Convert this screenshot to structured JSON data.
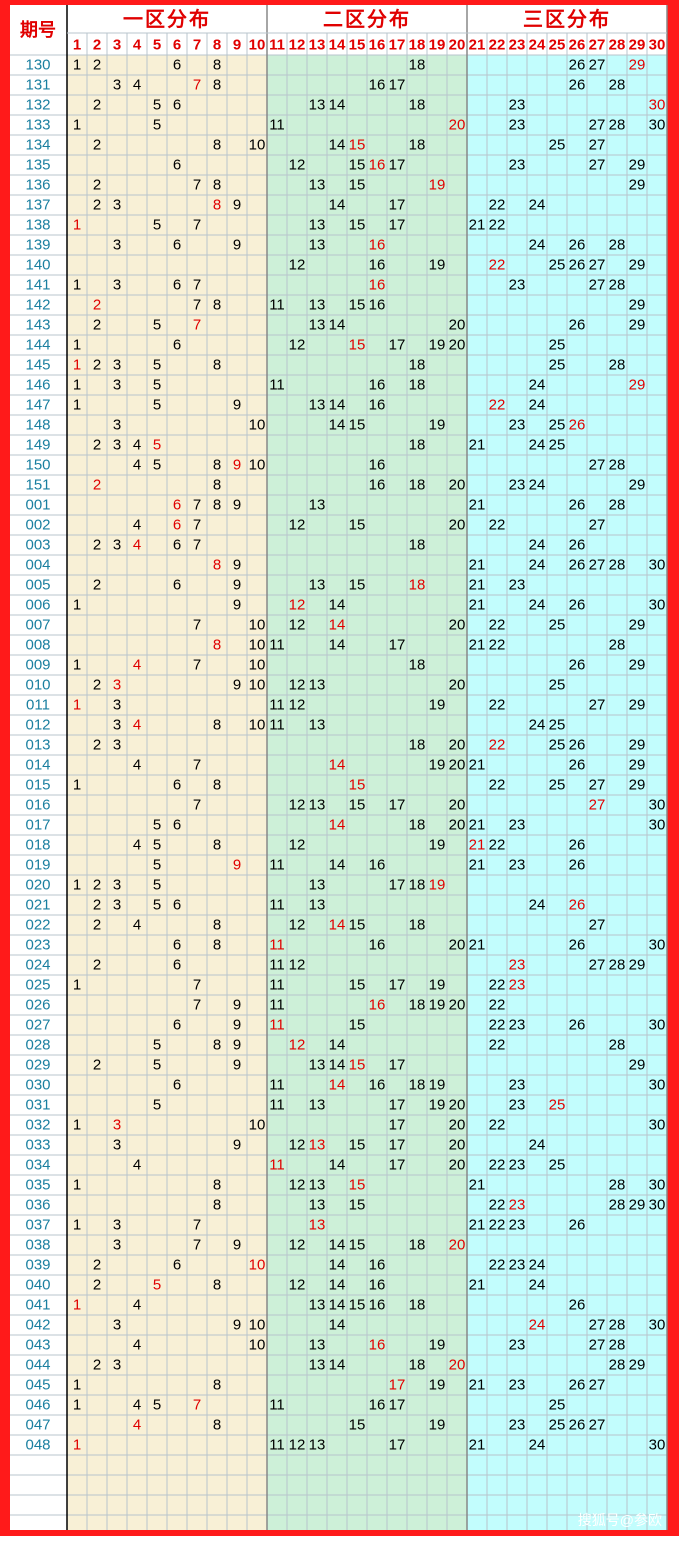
{
  "header": {
    "period_label": "期号",
    "zones": [
      "一区分布",
      "二区分布",
      "三区分布"
    ],
    "columns": [
      1,
      2,
      3,
      4,
      5,
      6,
      7,
      8,
      9,
      10,
      11,
      12,
      13,
      14,
      15,
      16,
      17,
      18,
      19,
      20,
      21,
      22,
      23,
      24,
      25,
      26,
      27,
      28,
      29,
      30
    ]
  },
  "rows": [
    {
      "period": "130",
      "period_red": true,
      "numbers": [
        1,
        2,
        6,
        8,
        18,
        26,
        27,
        29
      ],
      "red": [
        29
      ]
    },
    {
      "period": "131",
      "numbers": [
        3,
        4,
        7,
        8,
        16,
        17,
        26,
        28
      ],
      "red": [
        7
      ]
    },
    {
      "period": "132",
      "numbers": [
        2,
        5,
        6,
        13,
        14,
        18,
        23,
        30
      ],
      "red": [
        30
      ]
    },
    {
      "period": "133",
      "numbers": [
        1,
        5,
        11,
        20,
        23,
        27,
        28,
        30
      ],
      "red": [
        20
      ]
    },
    {
      "period": "134",
      "numbers": [
        2,
        8,
        10,
        14,
        15,
        18,
        25,
        27
      ],
      "red": [
        15
      ]
    },
    {
      "period": "135",
      "numbers": [
        6,
        12,
        15,
        16,
        17,
        23,
        27,
        29
      ],
      "red": [
        16
      ]
    },
    {
      "period": "136",
      "numbers": [
        2,
        7,
        8,
        13,
        15,
        19,
        29
      ],
      "red": [
        19
      ]
    },
    {
      "period": "137",
      "numbers": [
        2,
        3,
        8,
        9,
        14,
        17,
        22,
        24
      ],
      "red": [
        8
      ]
    },
    {
      "period": "138",
      "numbers": [
        1,
        5,
        7,
        13,
        15,
        17,
        21,
        22
      ],
      "red": [
        1
      ]
    },
    {
      "period": "139",
      "numbers": [
        3,
        6,
        9,
        13,
        16,
        24,
        26,
        28
      ],
      "red": [
        16
      ]
    },
    {
      "period": "140",
      "period_red": true,
      "numbers": [
        12,
        16,
        19,
        22,
        25,
        26,
        27,
        29
      ],
      "red": [
        22
      ]
    },
    {
      "period": "141",
      "numbers": [
        1,
        3,
        6,
        7,
        16,
        23,
        27,
        28
      ],
      "red": [
        16
      ]
    },
    {
      "period": "142",
      "numbers": [
        2,
        7,
        8,
        11,
        13,
        15,
        16,
        29
      ],
      "red": [
        2
      ]
    },
    {
      "period": "143",
      "numbers": [
        2,
        5,
        7,
        13,
        14,
        20,
        26,
        29
      ],
      "red": [
        7
      ]
    },
    {
      "period": "144",
      "numbers": [
        1,
        6,
        12,
        15,
        17,
        19,
        20,
        25
      ],
      "red": [
        15
      ]
    },
    {
      "period": "145",
      "numbers": [
        1,
        2,
        3,
        5,
        8,
        18,
        25,
        28
      ],
      "red": [
        1
      ]
    },
    {
      "period": "146",
      "numbers": [
        1,
        3,
        5,
        11,
        16,
        18,
        24,
        29
      ],
      "red": [
        29
      ]
    },
    {
      "period": "147",
      "numbers": [
        1,
        5,
        9,
        13,
        14,
        16,
        22,
        24
      ],
      "red": [
        22
      ]
    },
    {
      "period": "148",
      "numbers": [
        3,
        10,
        14,
        15,
        19,
        23,
        25,
        26
      ],
      "red": [
        26
      ]
    },
    {
      "period": "149",
      "numbers": [
        2,
        3,
        4,
        5,
        18,
        21,
        24,
        25
      ],
      "red": [
        5
      ]
    },
    {
      "period": "150",
      "period_red": true,
      "numbers": [
        4,
        5,
        8,
        9,
        10,
        16,
        27,
        28
      ],
      "red": [
        9
      ]
    },
    {
      "period": "151",
      "numbers": [
        2,
        8,
        16,
        18,
        20,
        23,
        24,
        29
      ],
      "red": [
        2
      ]
    },
    {
      "period": "001",
      "period_red": true,
      "numbers": [
        6,
        7,
        8,
        9,
        13,
        21,
        26,
        28
      ],
      "red": [
        6
      ]
    },
    {
      "period": "002",
      "numbers": [
        4,
        6,
        7,
        12,
        15,
        20,
        22,
        27
      ],
      "red": [
        6
      ]
    },
    {
      "period": "003",
      "numbers": [
        2,
        3,
        4,
        6,
        7,
        18,
        24,
        26
      ],
      "red": [
        4
      ]
    },
    {
      "period": "004",
      "numbers": [
        8,
        9,
        21,
        24,
        26,
        27,
        28,
        30
      ],
      "red": [
        8
      ]
    },
    {
      "period": "005",
      "numbers": [
        2,
        6,
        9,
        13,
        15,
        18,
        21,
        23
      ],
      "red": [
        18
      ]
    },
    {
      "period": "006",
      "numbers": [
        1,
        9,
        12,
        14,
        21,
        24,
        26,
        30
      ],
      "red": [
        12
      ]
    },
    {
      "period": "007",
      "numbers": [
        7,
        10,
        12,
        14,
        20,
        22,
        25,
        29
      ],
      "red": [
        14
      ]
    },
    {
      "period": "008",
      "numbers": [
        8,
        10,
        11,
        14,
        17,
        21,
        22,
        28
      ],
      "red": [
        8
      ]
    },
    {
      "period": "009",
      "numbers": [
        1,
        4,
        7,
        10,
        18,
        26,
        29
      ],
      "red": [
        4
      ]
    },
    {
      "period": "010",
      "period_red": true,
      "numbers": [
        2,
        3,
        9,
        10,
        12,
        13,
        20,
        25
      ],
      "red": [
        3
      ]
    },
    {
      "period": "011",
      "numbers": [
        1,
        3,
        11,
        12,
        19,
        22,
        27,
        29
      ],
      "red": [
        1
      ]
    },
    {
      "period": "012",
      "numbers": [
        3,
        4,
        8,
        10,
        11,
        13,
        24,
        25
      ],
      "red": [
        4
      ]
    },
    {
      "period": "013",
      "numbers": [
        2,
        3,
        18,
        20,
        22,
        25,
        26,
        29
      ],
      "red": [
        22
      ]
    },
    {
      "period": "014",
      "numbers": [
        4,
        7,
        14,
        19,
        20,
        21,
        26,
        29
      ],
      "red": [
        14
      ]
    },
    {
      "period": "015",
      "numbers": [
        1,
        6,
        8,
        15,
        22,
        25,
        27,
        29
      ],
      "red": [
        15
      ]
    },
    {
      "period": "016",
      "numbers": [
        7,
        12,
        13,
        15,
        17,
        20,
        27,
        30
      ],
      "red": [
        27
      ]
    },
    {
      "period": "017",
      "numbers": [
        5,
        6,
        14,
        18,
        20,
        21,
        23,
        30
      ],
      "red": [
        14
      ]
    },
    {
      "period": "018",
      "numbers": [
        4,
        5,
        8,
        12,
        19,
        21,
        22,
        26
      ],
      "red": [
        21
      ]
    },
    {
      "period": "019",
      "numbers": [
        5,
        9,
        11,
        14,
        16,
        21,
        23,
        26
      ],
      "red": [
        9
      ]
    },
    {
      "period": "020",
      "period_red": true,
      "numbers": [
        1,
        2,
        3,
        5,
        13,
        17,
        18,
        19
      ],
      "red": [
        19
      ]
    },
    {
      "period": "021",
      "numbers": [
        2,
        3,
        5,
        6,
        11,
        13,
        24,
        26
      ],
      "red": [
        26
      ]
    },
    {
      "period": "022",
      "numbers": [
        2,
        4,
        8,
        12,
        14,
        15,
        18,
        27
      ],
      "red": [
        14
      ]
    },
    {
      "period": "023",
      "numbers": [
        6,
        8,
        11,
        16,
        20,
        21,
        26,
        30
      ],
      "red": [
        11
      ]
    },
    {
      "period": "024",
      "numbers": [
        2,
        6,
        11,
        12,
        23,
        27,
        28,
        29
      ],
      "red": [
        23
      ]
    },
    {
      "period": "025",
      "numbers": [
        1,
        7,
        11,
        15,
        17,
        19,
        22,
        23
      ],
      "red": [
        23
      ]
    },
    {
      "period": "026",
      "numbers": [
        7,
        9,
        11,
        16,
        18,
        19,
        20,
        22
      ],
      "red": [
        16
      ]
    },
    {
      "period": "027",
      "numbers": [
        6,
        9,
        11,
        15,
        22,
        23,
        26,
        30
      ],
      "red": [
        11
      ]
    },
    {
      "period": "028",
      "numbers": [
        5,
        8,
        9,
        12,
        14,
        22,
        28
      ],
      "red": [
        12
      ]
    },
    {
      "period": "029",
      "numbers": [
        2,
        5,
        9,
        13,
        14,
        15,
        17,
        29
      ],
      "red": [
        15
      ]
    },
    {
      "period": "030",
      "period_red": true,
      "numbers": [
        6,
        11,
        14,
        16,
        18,
        19,
        23,
        30
      ],
      "red": [
        14
      ]
    },
    {
      "period": "031",
      "numbers": [
        5,
        11,
        13,
        17,
        19,
        20,
        23,
        25
      ],
      "red": [
        25
      ]
    },
    {
      "period": "032",
      "numbers": [
        1,
        3,
        10,
        17,
        20,
        22,
        30
      ],
      "red": [
        3
      ]
    },
    {
      "period": "033",
      "numbers": [
        3,
        9,
        12,
        13,
        15,
        17,
        20,
        24
      ],
      "red": [
        13
      ]
    },
    {
      "period": "034",
      "numbers": [
        4,
        11,
        14,
        17,
        20,
        22,
        23,
        25
      ],
      "red": [
        11
      ]
    },
    {
      "period": "035",
      "numbers": [
        1,
        8,
        12,
        13,
        15,
        21,
        28,
        30
      ],
      "red": [
        15
      ]
    },
    {
      "period": "036",
      "numbers": [
        8,
        13,
        15,
        22,
        23,
        28,
        29,
        30
      ],
      "red": [
        23
      ]
    },
    {
      "period": "037",
      "numbers": [
        1,
        3,
        7,
        13,
        21,
        22,
        23,
        26
      ],
      "red": [
        13
      ]
    },
    {
      "period": "038",
      "numbers": [
        3,
        7,
        9,
        12,
        14,
        15,
        18,
        20
      ],
      "red": [
        20
      ]
    },
    {
      "period": "039",
      "numbers": [
        2,
        6,
        10,
        14,
        16,
        22,
        23,
        24
      ],
      "red": [
        10
      ]
    },
    {
      "period": "040",
      "period_red": true,
      "numbers": [
        2,
        5,
        8,
        12,
        14,
        16,
        21,
        24
      ],
      "red": [
        5
      ]
    },
    {
      "period": "041",
      "numbers": [
        1,
        4,
        13,
        14,
        15,
        16,
        18,
        26
      ],
      "red": [
        1
      ]
    },
    {
      "period": "042",
      "numbers": [
        3,
        9,
        10,
        14,
        24,
        27,
        28,
        30
      ],
      "red": [
        24
      ]
    },
    {
      "period": "043",
      "numbers": [
        4,
        10,
        13,
        16,
        19,
        23,
        27,
        28
      ],
      "red": [
        16
      ]
    },
    {
      "period": "044",
      "numbers": [
        2,
        3,
        13,
        14,
        18,
        20,
        28,
        29
      ],
      "red": [
        20
      ]
    },
    {
      "period": "045",
      "numbers": [
        1,
        8,
        17,
        19,
        21,
        23,
        26,
        27
      ],
      "red": [
        17
      ]
    },
    {
      "period": "046",
      "numbers": [
        1,
        4,
        5,
        7,
        11,
        16,
        17,
        25
      ],
      "red": [
        7
      ]
    },
    {
      "period": "047",
      "numbers": [
        4,
        8,
        15,
        19,
        23,
        25,
        26,
        27
      ],
      "red": [
        4
      ]
    },
    {
      "period": "048",
      "numbers": [
        1,
        11,
        12,
        13,
        17,
        21,
        24,
        30
      ],
      "red": [
        1
      ]
    }
  ],
  "watermark": "搜狐号@参欧"
}
